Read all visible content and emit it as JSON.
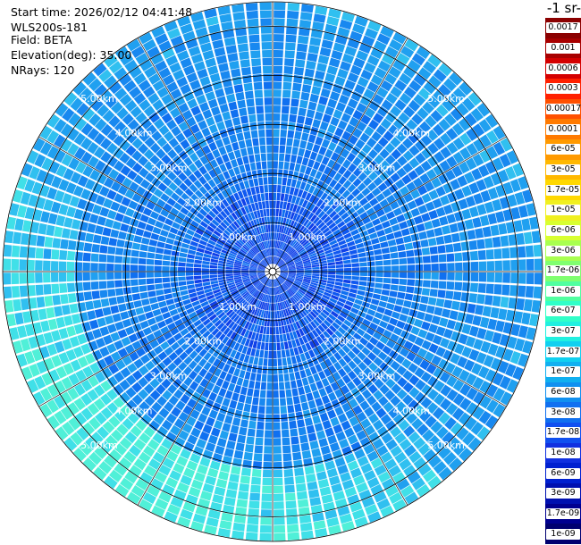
{
  "info": {
    "start_time": "Start time: 2026/02/12 04:41:48",
    "device": "WLS200s-181",
    "field": "Field: BETA",
    "elevation": "Elevation(deg): 35.00",
    "nrays": "NRays: 120"
  },
  "chart_data": {
    "type": "heatmap",
    "projection": "polar-ppi",
    "field": "BETA",
    "elevation_deg": 35.0,
    "n_rays": 120,
    "max_range_km": 5.5,
    "range_ring_labels": [
      "1.00km",
      "2.00km",
      "3.00km",
      "4.00km",
      "5.00km"
    ],
    "range_ring_km": [
      1,
      2,
      3,
      4,
      5
    ],
    "colorbar_title": "-1 sr-",
    "colorbar_labels": [
      "0.0017",
      "0.001",
      "0.0006",
      "0.0003",
      "0.00017",
      "0.0001",
      "6e-05",
      "3e-05",
      "1.7e-05",
      "1e-05",
      "6e-06",
      "3e-06",
      "1.7e-06",
      "1e-06",
      "6e-07",
      "3e-07",
      "1.7e-07",
      "1e-07",
      "6e-08",
      "3e-08",
      "1.7e-08",
      "1e-08",
      "6e-09",
      "3e-09",
      "1.7e-09",
      "1e-09"
    ],
    "colorbar_colors": [
      "#8b0000",
      "#a80000",
      "#d40000",
      "#ff2000",
      "#ff5000",
      "#ff7a00",
      "#ff9a00",
      "#ffb800",
      "#ffd800",
      "#f0f020",
      "#d8ff30",
      "#a8ff50",
      "#80ff70",
      "#50ffa0",
      "#30ffc8",
      "#20f0e0",
      "#10d0f0",
      "#10b0f0",
      "#1090f0",
      "#1070f0",
      "#1050f0",
      "#1030e0",
      "#0020d0",
      "#0010b0",
      "#000090",
      "#000070"
    ],
    "dominant_value_range": [
      "1e-08",
      "1.7e-07"
    ]
  }
}
